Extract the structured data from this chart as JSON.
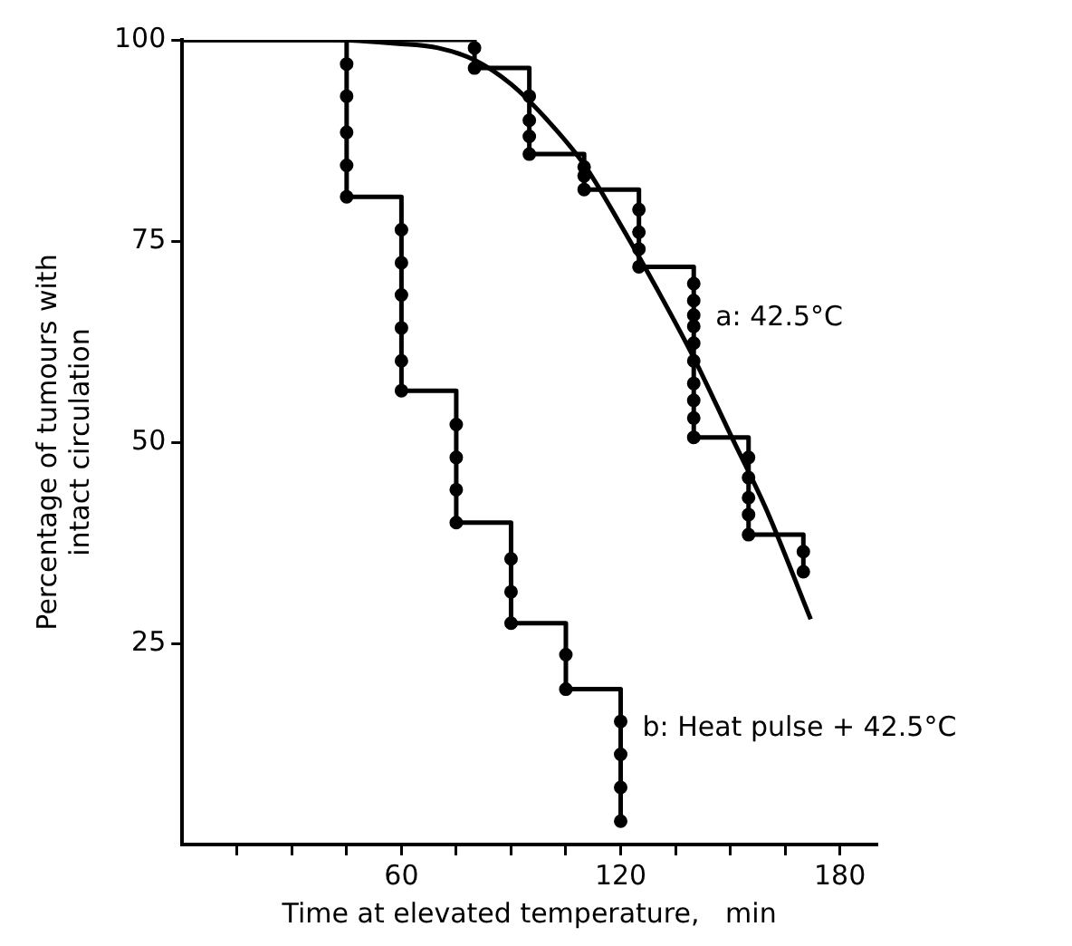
{
  "chart_data": {
    "type": "step",
    "xlabel": "Time at elevated temperature,   min",
    "ylabel": "Percentage of tumours with\nintact circulation",
    "xlim": [
      0,
      190
    ],
    "xticks": [
      {
        "value": 15,
        "label": null
      },
      {
        "value": 30,
        "label": null
      },
      {
        "value": 45,
        "label": null
      },
      60,
      {
        "value": 75,
        "label": null
      },
      {
        "value": 90,
        "label": null
      },
      {
        "value": 105,
        "label": null
      },
      120,
      {
        "value": 135,
        "label": null
      },
      {
        "value": 150,
        "label": null
      },
      {
        "value": 165,
        "label": null
      },
      180
    ],
    "ylim": [
      0,
      100
    ],
    "yticks": [
      25,
      50,
      75,
      100
    ],
    "grid": false,
    "legend": false,
    "series": [
      {
        "name": "a: 42.5°C",
        "marker": "none",
        "color": "#000000",
        "x": [
          0,
          80,
          95,
          110,
          125,
          140,
          155,
          170
        ],
        "values": [
          100,
          96.5,
          85.8,
          81.4,
          71.8,
          50.6,
          38.5,
          33.9
        ]
      },
      {
        "name": "b: Heat pulse + 42.5°C",
        "marker": "none",
        "color": "#000000",
        "x": [
          0,
          45,
          60,
          75,
          90,
          105,
          120
        ],
        "values": [
          100,
          80.5,
          56.4,
          40,
          27.5,
          19.3,
          2.9
        ]
      },
      {
        "type": "scatter",
        "marker": "circle",
        "color": "#000000",
        "x": [
          80,
          80,
          95,
          95,
          95,
          95,
          110,
          110,
          110,
          125,
          125,
          125,
          125,
          140,
          140,
          140,
          140,
          140,
          140,
          140,
          140,
          140,
          140,
          155,
          155,
          155,
          155,
          155,
          170,
          170
        ],
        "values": [
          99,
          96.5,
          93,
          90,
          88,
          85.8,
          84.2,
          83.1,
          81.4,
          78.9,
          76.1,
          74,
          71.8,
          69.7,
          67.6,
          65.8,
          64.4,
          62.3,
          60.1,
          57.3,
          55.2,
          53,
          50.6,
          48.1,
          45.6,
          43.1,
          41,
          38.5,
          36.4,
          33.9
        ]
      },
      {
        "type": "scatter",
        "marker": "circle",
        "color": "#000000",
        "x": [
          45,
          45,
          45,
          45,
          45,
          60,
          60,
          60,
          60,
          60,
          60,
          75,
          75,
          75,
          75,
          90,
          90,
          90,
          105,
          105,
          120,
          120,
          120,
          120
        ],
        "values": [
          97,
          93,
          88.5,
          84.4,
          80.5,
          76.4,
          72.3,
          68.3,
          64.2,
          60.1,
          56.4,
          52.2,
          48.1,
          44.1,
          40,
          35.5,
          31.4,
          27.5,
          23.6,
          19.3,
          15.3,
          11.2,
          7.1,
          2.9
        ]
      },
      {
        "type": "line",
        "marker": "none",
        "color": "#000000",
        "x": [
          0,
          40,
          60,
          70,
          80,
          90,
          100,
          110,
          120,
          130,
          140,
          150,
          160,
          172
        ],
        "values": [
          100,
          100,
          99.5,
          99,
          97.5,
          94.5,
          90,
          84.5,
          77,
          69,
          60.5,
          51,
          41.5,
          28
        ]
      }
    ]
  }
}
